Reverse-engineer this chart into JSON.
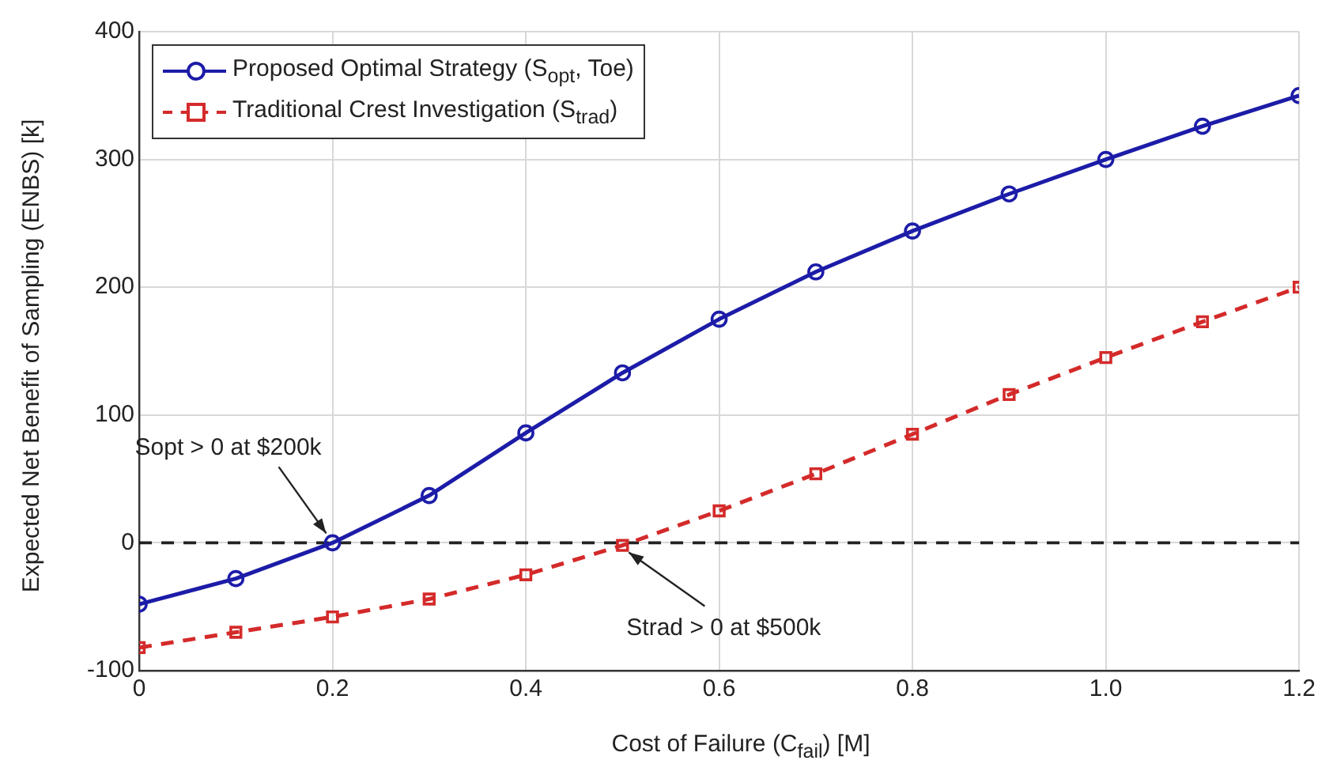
{
  "chart_data": {
    "type": "line",
    "xlabel": "Cost of Failure (C$_{fail}$) [M]",
    "ylabel": "Expected Net Benefit of Sampling (ENBS) [k]",
    "x": [
      0,
      0.1,
      0.2,
      0.3,
      0.4,
      0.5,
      0.6,
      0.7,
      0.8,
      0.9,
      1.0,
      1.1,
      1.2
    ],
    "series": [
      {
        "name": "Proposed Optimal Strategy (S$_{opt}$, Toe)",
        "color": "#1c1ca8",
        "marker": "circle",
        "line_style": "solid",
        "values": [
          -48,
          -28,
          0,
          37,
          86,
          133,
          175,
          212,
          244,
          273,
          300,
          326,
          350
        ]
      },
      {
        "name": "Traditional Crest Investigation (S$_{trad}$)",
        "color": "#d42a2a",
        "marker": "square",
        "line_style": "dashed",
        "values": [
          -82,
          -70,
          -58,
          -44,
          -25,
          -2,
          25,
          54,
          85,
          116,
          145,
          173,
          200
        ]
      }
    ],
    "xlim": [
      0,
      1.2
    ],
    "xticks": [
      0,
      0.2,
      0.4,
      0.6,
      0.8,
      {
        "value": 1.0,
        "label": "1.0"
      },
      1.2
    ],
    "ylim": [
      -100,
      400
    ],
    "yticks": [
      -100,
      0,
      100,
      200,
      300,
      400
    ],
    "grid": true,
    "legend": "top left",
    "ref_lines": [
      {
        "axis": "y",
        "value": 0,
        "color": "#222222",
        "line_style": "dashed"
      }
    ],
    "annotations": [
      {
        "text": "Sopt > 0 at $200k",
        "x": 0.2,
        "y": 0
      },
      {
        "text": "Strad > 0 at $500k",
        "x": 0.5,
        "y": 0
      }
    ]
  }
}
